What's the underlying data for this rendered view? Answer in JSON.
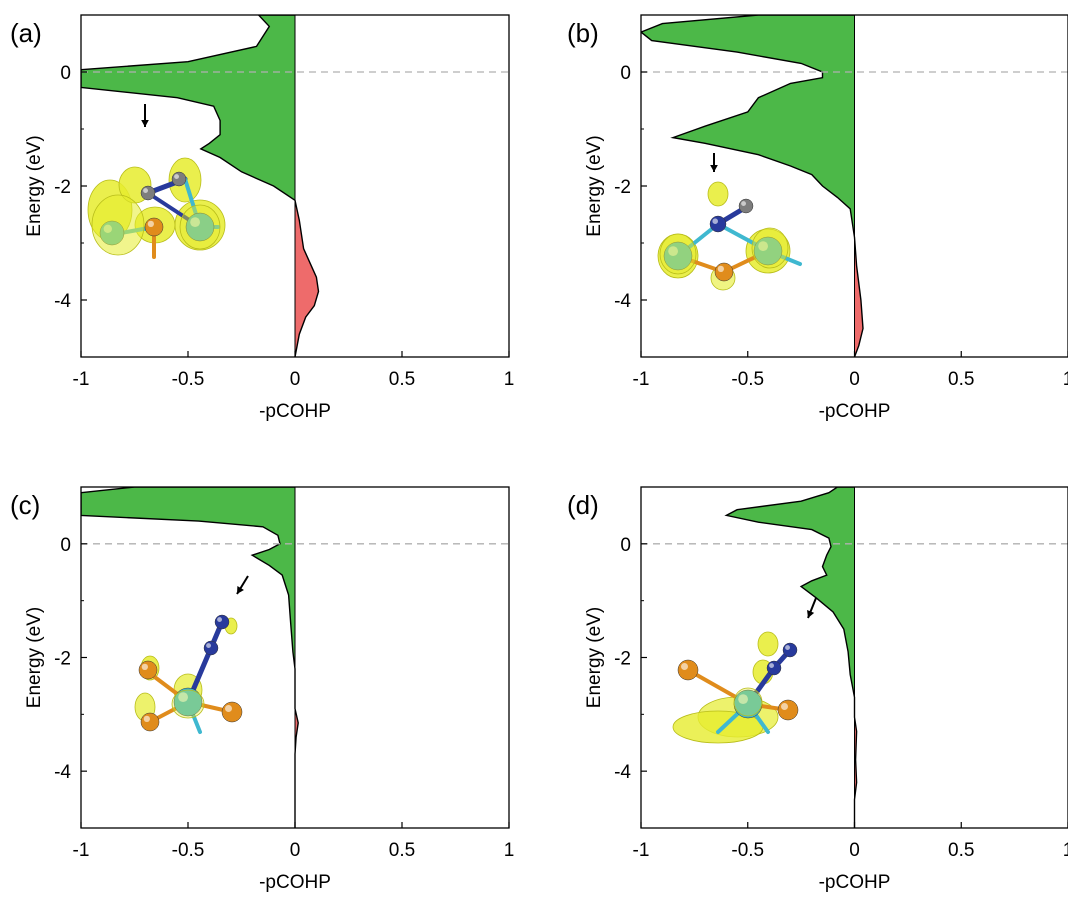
{
  "chart_data": [
    {
      "panel": "(a)",
      "type": "area",
      "xlabel": "-pCOHP",
      "ylabel": "Energy (eV)",
      "xlim": [
        -1,
        1
      ],
      "ylim": [
        -5,
        1
      ],
      "xticks": [
        "-1",
        "-0.5",
        "0",
        "0.5",
        "1"
      ],
      "yticks": [
        "0",
        "-2",
        "-4"
      ],
      "fermi_level": 0,
      "curve": [
        [
          0.0,
          1.0
        ],
        [
          -0.17,
          1.0
        ],
        [
          -0.12,
          0.8
        ],
        [
          -0.18,
          0.45
        ],
        [
          -0.5,
          0.18
        ],
        [
          -1.0,
          0.04
        ],
        [
          -1.0,
          -0.27
        ],
        [
          -0.55,
          -0.45
        ],
        [
          -0.38,
          -0.6
        ],
        [
          -0.35,
          -0.85
        ],
        [
          -0.35,
          -1.1
        ],
        [
          -0.4,
          -1.25
        ],
        [
          -0.44,
          -1.35
        ],
        [
          -0.35,
          -1.5
        ],
        [
          -0.25,
          -1.75
        ],
        [
          -0.1,
          -2.0
        ],
        [
          0.0,
          -2.25
        ],
        [
          0.02,
          -2.6
        ],
        [
          0.04,
          -3.1
        ],
        [
          0.07,
          -3.35
        ],
        [
          0.1,
          -3.6
        ],
        [
          0.11,
          -3.85
        ],
        [
          0.09,
          -4.1
        ],
        [
          0.05,
          -4.3
        ],
        [
          0.02,
          -4.6
        ],
        [
          0.0,
          -5.0
        ]
      ],
      "arrow_direction": "down",
      "colors": {
        "bonding": "#4cb848",
        "antibonding": "#ee6b6b"
      }
    },
    {
      "panel": "(b)",
      "type": "area",
      "xlabel": "-pCOHP",
      "ylabel": "Energy (eV)",
      "xlim": [
        -1,
        1
      ],
      "ylim": [
        -5,
        1
      ],
      "xticks": [
        "-1",
        "-0.5",
        "0",
        "0.5",
        "1"
      ],
      "yticks": [
        "0",
        "-2",
        "-4"
      ],
      "fermi_level": 0,
      "curve": [
        [
          0.0,
          1.0
        ],
        [
          -0.45,
          1.0
        ],
        [
          -0.9,
          0.85
        ],
        [
          -1.0,
          0.7
        ],
        [
          -0.95,
          0.55
        ],
        [
          -0.55,
          0.35
        ],
        [
          -0.25,
          0.15
        ],
        [
          -0.15,
          0.0
        ],
        [
          -0.15,
          -0.1
        ],
        [
          -0.3,
          -0.2
        ],
        [
          -0.45,
          -0.45
        ],
        [
          -0.5,
          -0.7
        ],
        [
          -0.7,
          -0.95
        ],
        [
          -0.85,
          -1.15
        ],
        [
          -0.7,
          -1.25
        ],
        [
          -0.45,
          -1.45
        ],
        [
          -0.3,
          -1.65
        ],
        [
          -0.2,
          -1.8
        ],
        [
          -0.15,
          -2.0
        ],
        [
          -0.08,
          -2.2
        ],
        [
          -0.02,
          -2.4
        ],
        [
          0.0,
          -2.9
        ],
        [
          0.01,
          -3.4
        ],
        [
          0.03,
          -4.0
        ],
        [
          0.04,
          -4.5
        ],
        [
          0.02,
          -4.8
        ],
        [
          0.0,
          -5.0
        ]
      ],
      "arrow_direction": "down",
      "colors": {
        "bonding": "#4cb848",
        "antibonding": "#ee6b6b"
      }
    },
    {
      "panel": "(c)",
      "type": "area",
      "xlabel": "-pCOHP",
      "ylabel": "Energy (eV)",
      "xlim": [
        -1,
        1
      ],
      "ylim": [
        -5,
        1
      ],
      "xticks": [
        "-1",
        "-0.5",
        "0",
        "0.5",
        "1"
      ],
      "yticks": [
        "0",
        "-2",
        "-4"
      ],
      "fermi_level": 0,
      "curve": [
        [
          0.0,
          1.0
        ],
        [
          -0.75,
          1.0
        ],
        [
          -1.0,
          0.9
        ],
        [
          -1.0,
          0.5
        ],
        [
          -0.45,
          0.4
        ],
        [
          -0.15,
          0.3
        ],
        [
          -0.08,
          0.15
        ],
        [
          -0.07,
          0.0
        ],
        [
          -0.12,
          -0.1
        ],
        [
          -0.2,
          -0.2
        ],
        [
          -0.12,
          -0.38
        ],
        [
          -0.06,
          -0.55
        ],
        [
          -0.03,
          -0.9
        ],
        [
          -0.02,
          -1.4
        ],
        [
          -0.01,
          -1.9
        ],
        [
          0.0,
          -2.2
        ],
        [
          0.0,
          -2.9
        ],
        [
          0.015,
          -3.15
        ],
        [
          0.005,
          -3.4
        ],
        [
          0.0,
          -3.7
        ],
        [
          0.0,
          -5.0
        ]
      ],
      "arrow_direction": "down-left",
      "colors": {
        "bonding": "#4cb848",
        "antibonding": "#ee6b6b"
      }
    },
    {
      "panel": "(d)",
      "type": "area",
      "xlabel": "-pCOHP",
      "ylabel": "Energy (eV)",
      "xlim": [
        -1,
        1
      ],
      "ylim": [
        -5,
        1
      ],
      "xticks": [
        "-1",
        "-0.5",
        "0",
        "0.5",
        "1"
      ],
      "yticks": [
        "0",
        "-2",
        "-4"
      ],
      "fermi_level": 0,
      "curve": [
        [
          0.0,
          1.0
        ],
        [
          -0.08,
          1.0
        ],
        [
          -0.12,
          0.9
        ],
        [
          -0.25,
          0.75
        ],
        [
          -0.55,
          0.6
        ],
        [
          -0.6,
          0.5
        ],
        [
          -0.45,
          0.38
        ],
        [
          -0.2,
          0.25
        ],
        [
          -0.12,
          0.1
        ],
        [
          -0.11,
          -0.05
        ],
        [
          -0.13,
          -0.2
        ],
        [
          -0.15,
          -0.4
        ],
        [
          -0.13,
          -0.55
        ],
        [
          -0.2,
          -0.65
        ],
        [
          -0.25,
          -0.75
        ],
        [
          -0.18,
          -0.95
        ],
        [
          -0.1,
          -1.2
        ],
        [
          -0.05,
          -1.5
        ],
        [
          -0.03,
          -1.9
        ],
        [
          -0.02,
          -2.3
        ],
        [
          0.0,
          -2.7
        ],
        [
          0.0,
          -3.05
        ],
        [
          0.01,
          -3.3
        ],
        [
          0.005,
          -3.8
        ],
        [
          0.01,
          -4.2
        ],
        [
          0.0,
          -4.5
        ],
        [
          0.0,
          -5.0
        ]
      ],
      "arrow_direction": "down-left",
      "colors": {
        "bonding": "#4cb848",
        "antibonding": "#ee6b6b"
      }
    }
  ],
  "colors": {
    "axis": "#000000",
    "fermi_line": "#b0b0b0",
    "isosurface": "#e6ec2e",
    "atom_cyan": "#3fb8d0",
    "atom_orange": "#e08c1c",
    "atom_blue": "#283a9c",
    "atom_gray": "#7d7d7d"
  }
}
